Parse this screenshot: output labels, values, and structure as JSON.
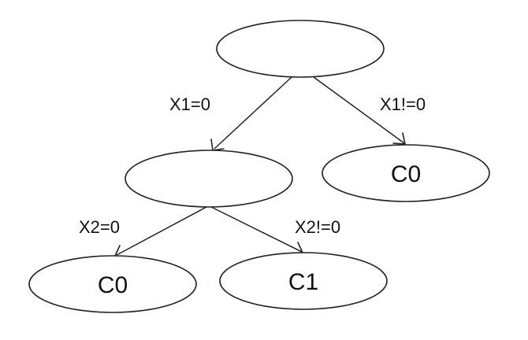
{
  "nodes": {
    "root": {
      "label": ""
    },
    "x1_zero": {
      "label": ""
    },
    "x1_nonzero": {
      "label": "C0"
    },
    "x2_zero": {
      "label": "C0"
    },
    "x2_nonzero": {
      "label": "C1"
    }
  },
  "edges": {
    "root_to_x1_zero": {
      "label": "X1=0"
    },
    "root_to_x1_nonzero": {
      "label": "X1!=0"
    },
    "x1_zero_to_x2_zero": {
      "label": "X2=0"
    },
    "x1_zero_to_x2_nonzero": {
      "label": "X2!=0"
    }
  },
  "colors": {
    "stroke": "#222222",
    "text": "#111111",
    "background": "#ffffff"
  }
}
